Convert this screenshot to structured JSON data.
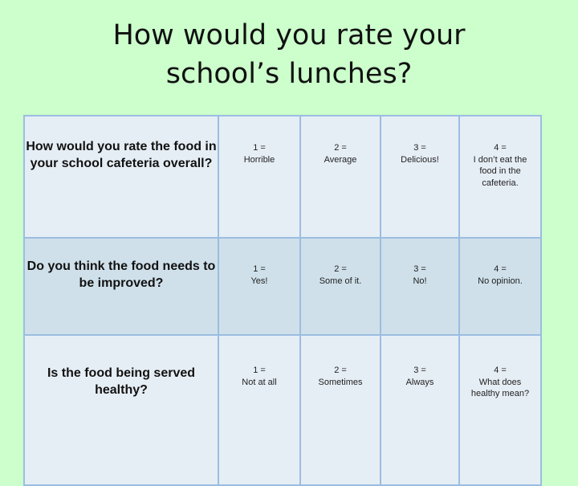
{
  "title": {
    "line1": "How would you rate your",
    "line2": "school’s lunches?"
  },
  "rows": [
    {
      "question": "How would you rate the food in your school cafeteria overall?",
      "options": [
        {
          "num": "1 =",
          "label": "Horrible"
        },
        {
          "num": "2 =",
          "label": "Average"
        },
        {
          "num": "3 =",
          "label": "Delicious!"
        },
        {
          "num": "4 =",
          "label": "I don’t eat the food in the cafeteria."
        }
      ]
    },
    {
      "question": "Do you think the food needs to be improved?",
      "options": [
        {
          "num": "1 =",
          "label": "Yes!"
        },
        {
          "num": "2 =",
          "label": "Some of it."
        },
        {
          "num": "3 =",
          "label": "No!"
        },
        {
          "num": "4 =",
          "label": "No opinion."
        }
      ]
    },
    {
      "question": "Is the food being served healthy?",
      "options": [
        {
          "num": "1 =",
          "label": "Not at all"
        },
        {
          "num": "2 =",
          "label": "Sometimes"
        },
        {
          "num": "3 =",
          "label": "Always"
        },
        {
          "num": "4 =",
          "label": "What does healthy mean?"
        }
      ]
    }
  ]
}
